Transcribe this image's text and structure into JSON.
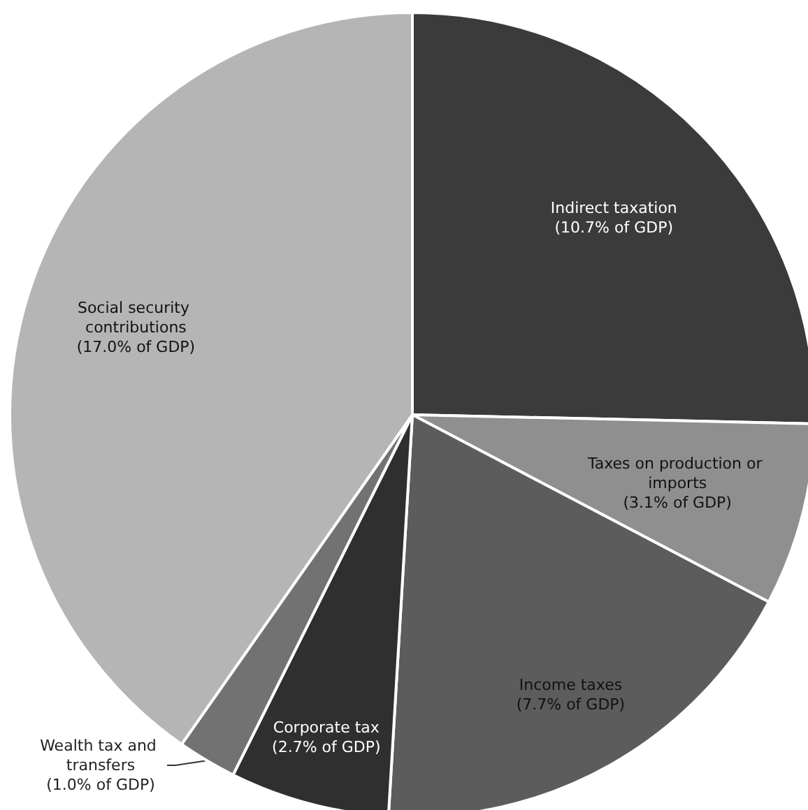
{
  "chart_data": {
    "type": "pie",
    "categories": [
      "Indirect taxation",
      "Taxes on production or imports",
      "Income taxes",
      "Corporate tax",
      "Wealth tax and transfers",
      "Social security contributions"
    ],
    "values": [
      10.7,
      3.1,
      7.7,
      2.7,
      1.0,
      17.0
    ],
    "value_labels": [
      "(10.7% of GDP)",
      "(3.1% of GDP)",
      "(7.7% of GDP)",
      "(2.7% of GDP)",
      "(1.0% of GDP)",
      "(17.0% of GDP)"
    ],
    "colors": [
      "#3b3b3b",
      "#8f8f8f",
      "#5c5c5c",
      "#2f2f2f",
      "#727272",
      "#b5b5b5"
    ],
    "legend": false
  }
}
